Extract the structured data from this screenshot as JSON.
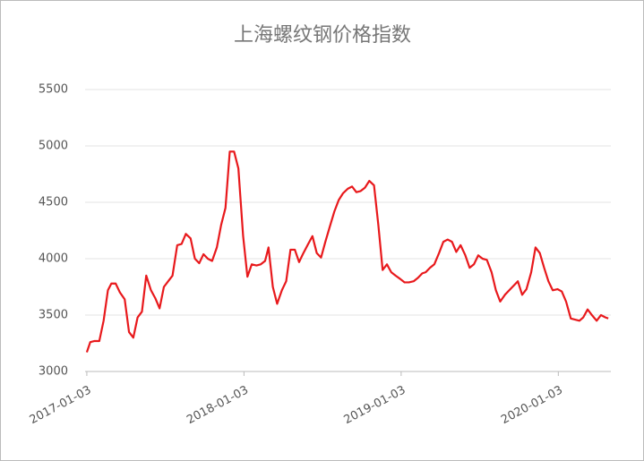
{
  "chart_data": {
    "type": "line",
    "title": "上海螺纹钢价格指数",
    "x": [
      "2017-01-03",
      "2017-01-11",
      "2017-01-21",
      "2017-02-01",
      "2017-02-11",
      "2017-02-21",
      "2017-03-01",
      "2017-03-11",
      "2017-03-21",
      "2017-04-01",
      "2017-04-11",
      "2017-04-21",
      "2017-05-01",
      "2017-05-11",
      "2017-05-21",
      "2017-06-01",
      "2017-06-11",
      "2017-06-21",
      "2017-07-01",
      "2017-07-11",
      "2017-07-21",
      "2017-08-01",
      "2017-08-11",
      "2017-08-21",
      "2017-09-01",
      "2017-09-11",
      "2017-09-21",
      "2017-10-01",
      "2017-10-11",
      "2017-10-21",
      "2017-11-01",
      "2017-11-11",
      "2017-11-21",
      "2017-12-01",
      "2017-12-11",
      "2017-12-21",
      "2018-01-01",
      "2018-01-11",
      "2018-01-21",
      "2018-02-01",
      "2018-02-11",
      "2018-02-21",
      "2018-03-01",
      "2018-03-11",
      "2018-03-21",
      "2018-04-01",
      "2018-04-11",
      "2018-04-21",
      "2018-05-01",
      "2018-05-11",
      "2018-05-21",
      "2018-06-01",
      "2018-06-11",
      "2018-06-21",
      "2018-07-01",
      "2018-07-11",
      "2018-07-21",
      "2018-08-01",
      "2018-08-11",
      "2018-08-21",
      "2018-09-01",
      "2018-09-11",
      "2018-09-21",
      "2018-10-01",
      "2018-10-11",
      "2018-10-21",
      "2018-11-01",
      "2018-11-11",
      "2018-11-21",
      "2018-12-01",
      "2018-12-11",
      "2018-12-21",
      "2019-01-01",
      "2019-01-11",
      "2019-01-21",
      "2019-02-01",
      "2019-02-11",
      "2019-02-21",
      "2019-03-01",
      "2019-03-11",
      "2019-03-21",
      "2019-04-01",
      "2019-04-11",
      "2019-04-21",
      "2019-05-01",
      "2019-05-11",
      "2019-05-21",
      "2019-06-01",
      "2019-06-11",
      "2019-06-21",
      "2019-07-01",
      "2019-07-11",
      "2019-07-21",
      "2019-08-01",
      "2019-08-11",
      "2019-08-21",
      "2019-09-01",
      "2019-09-11",
      "2019-09-21",
      "2019-10-01",
      "2019-10-11",
      "2019-10-21",
      "2019-11-01",
      "2019-11-11",
      "2019-11-21",
      "2019-12-01",
      "2019-12-11",
      "2019-12-21",
      "2020-01-01",
      "2020-01-11",
      "2020-01-21",
      "2020-02-01",
      "2020-02-11",
      "2020-02-21",
      "2020-03-01",
      "2020-03-11",
      "2020-03-21",
      "2020-04-01",
      "2020-04-11",
      "2020-04-21",
      "2020-04-28"
    ],
    "series": [
      {
        "color": "#e8191c",
        "values": [
          3170,
          3260,
          3270,
          3270,
          3450,
          3720,
          3780,
          3780,
          3700,
          3640,
          3350,
          3300,
          3480,
          3530,
          3850,
          3720,
          3650,
          3560,
          3750,
          3800,
          3850,
          4120,
          4130,
          4220,
          4180,
          4000,
          3960,
          4040,
          4000,
          3980,
          4100,
          4300,
          4450,
          4950,
          4950,
          4800,
          4200,
          3840,
          3950,
          3940,
          3950,
          3980,
          4100,
          3750,
          3600,
          3720,
          3800,
          4080,
          4080,
          3970,
          4050,
          4130,
          4200,
          4050,
          4010,
          4150,
          4280,
          4420,
          4520,
          4580,
          4620,
          4640,
          4590,
          4600,
          4630,
          4690,
          4650,
          4300,
          3900,
          3950,
          3880,
          3850,
          3820,
          3790,
          3790,
          3800,
          3830,
          3870,
          3880,
          3920,
          3950,
          4050,
          4150,
          4170,
          4150,
          4060,
          4120,
          4030,
          3920,
          3950,
          4030,
          4000,
          3990,
          3880,
          3720,
          3620,
          3680,
          3720,
          3760,
          3800,
          3680,
          3730,
          3880,
          4100,
          4050,
          3920,
          3800,
          3720,
          3730,
          3710,
          3620,
          3470,
          3460,
          3450,
          3480,
          3550,
          3500,
          3450,
          3500,
          3480,
          3470
        ]
      }
    ],
    "xlim": [
      "2016-12-30",
      "2020-05-04"
    ],
    "xticks": [
      "2017-01-03",
      "2018-01-03",
      "2019-01-03",
      "2020-01-03"
    ],
    "ylim": [
      3000,
      5500
    ],
    "yticks": [
      3000,
      3500,
      4000,
      4500,
      5000,
      5500
    ],
    "grid": true
  }
}
